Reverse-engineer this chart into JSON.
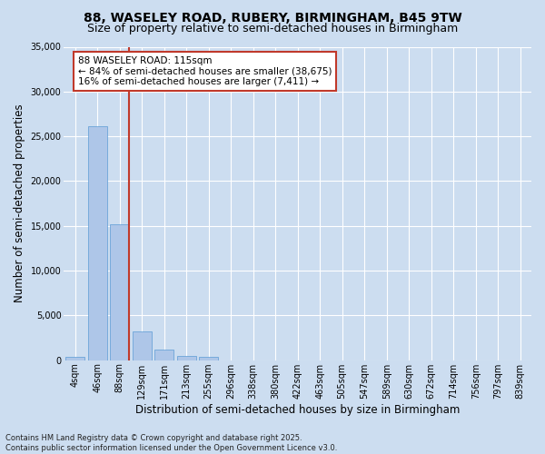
{
  "title_line1": "88, WASELEY ROAD, RUBERY, BIRMINGHAM, B45 9TW",
  "title_line2": "Size of property relative to semi-detached houses in Birmingham",
  "xlabel": "Distribution of semi-detached houses by size in Birmingham",
  "ylabel": "Number of semi-detached properties",
  "categories": [
    "4sqm",
    "46sqm",
    "88sqm",
    "129sqm",
    "171sqm",
    "213sqm",
    "255sqm",
    "296sqm",
    "338sqm",
    "380sqm",
    "422sqm",
    "463sqm",
    "505sqm",
    "547sqm",
    "589sqm",
    "630sqm",
    "672sqm",
    "714sqm",
    "756sqm",
    "797sqm",
    "839sqm"
  ],
  "values": [
    400,
    26100,
    15200,
    3200,
    1200,
    500,
    400,
    0,
    0,
    0,
    0,
    0,
    0,
    0,
    0,
    0,
    0,
    0,
    0,
    0,
    0
  ],
  "bar_color": "#aec6e8",
  "bar_edge_color": "#5b9bd5",
  "vline_bin_index": 2,
  "vline_color": "#c0392b",
  "annotation_title": "88 WASELEY ROAD: 115sqm",
  "annotation_line1": "← 84% of semi-detached houses are smaller (38,675)",
  "annotation_line2": "16% of semi-detached houses are larger (7,411) →",
  "annotation_box_color": "#ffffff",
  "annotation_box_edge": "#c0392b",
  "ylim": [
    0,
    35000
  ],
  "yticks": [
    0,
    5000,
    10000,
    15000,
    20000,
    25000,
    30000,
    35000
  ],
  "background_color": "#ccddf0",
  "grid_color": "#ffffff",
  "footer_line1": "Contains HM Land Registry data © Crown copyright and database right 2025.",
  "footer_line2": "Contains public sector information licensed under the Open Government Licence v3.0.",
  "title_fontsize": 10,
  "subtitle_fontsize": 9,
  "axis_label_fontsize": 8.5,
  "tick_fontsize": 7,
  "annotation_fontsize": 7.5,
  "footer_fontsize": 6
}
